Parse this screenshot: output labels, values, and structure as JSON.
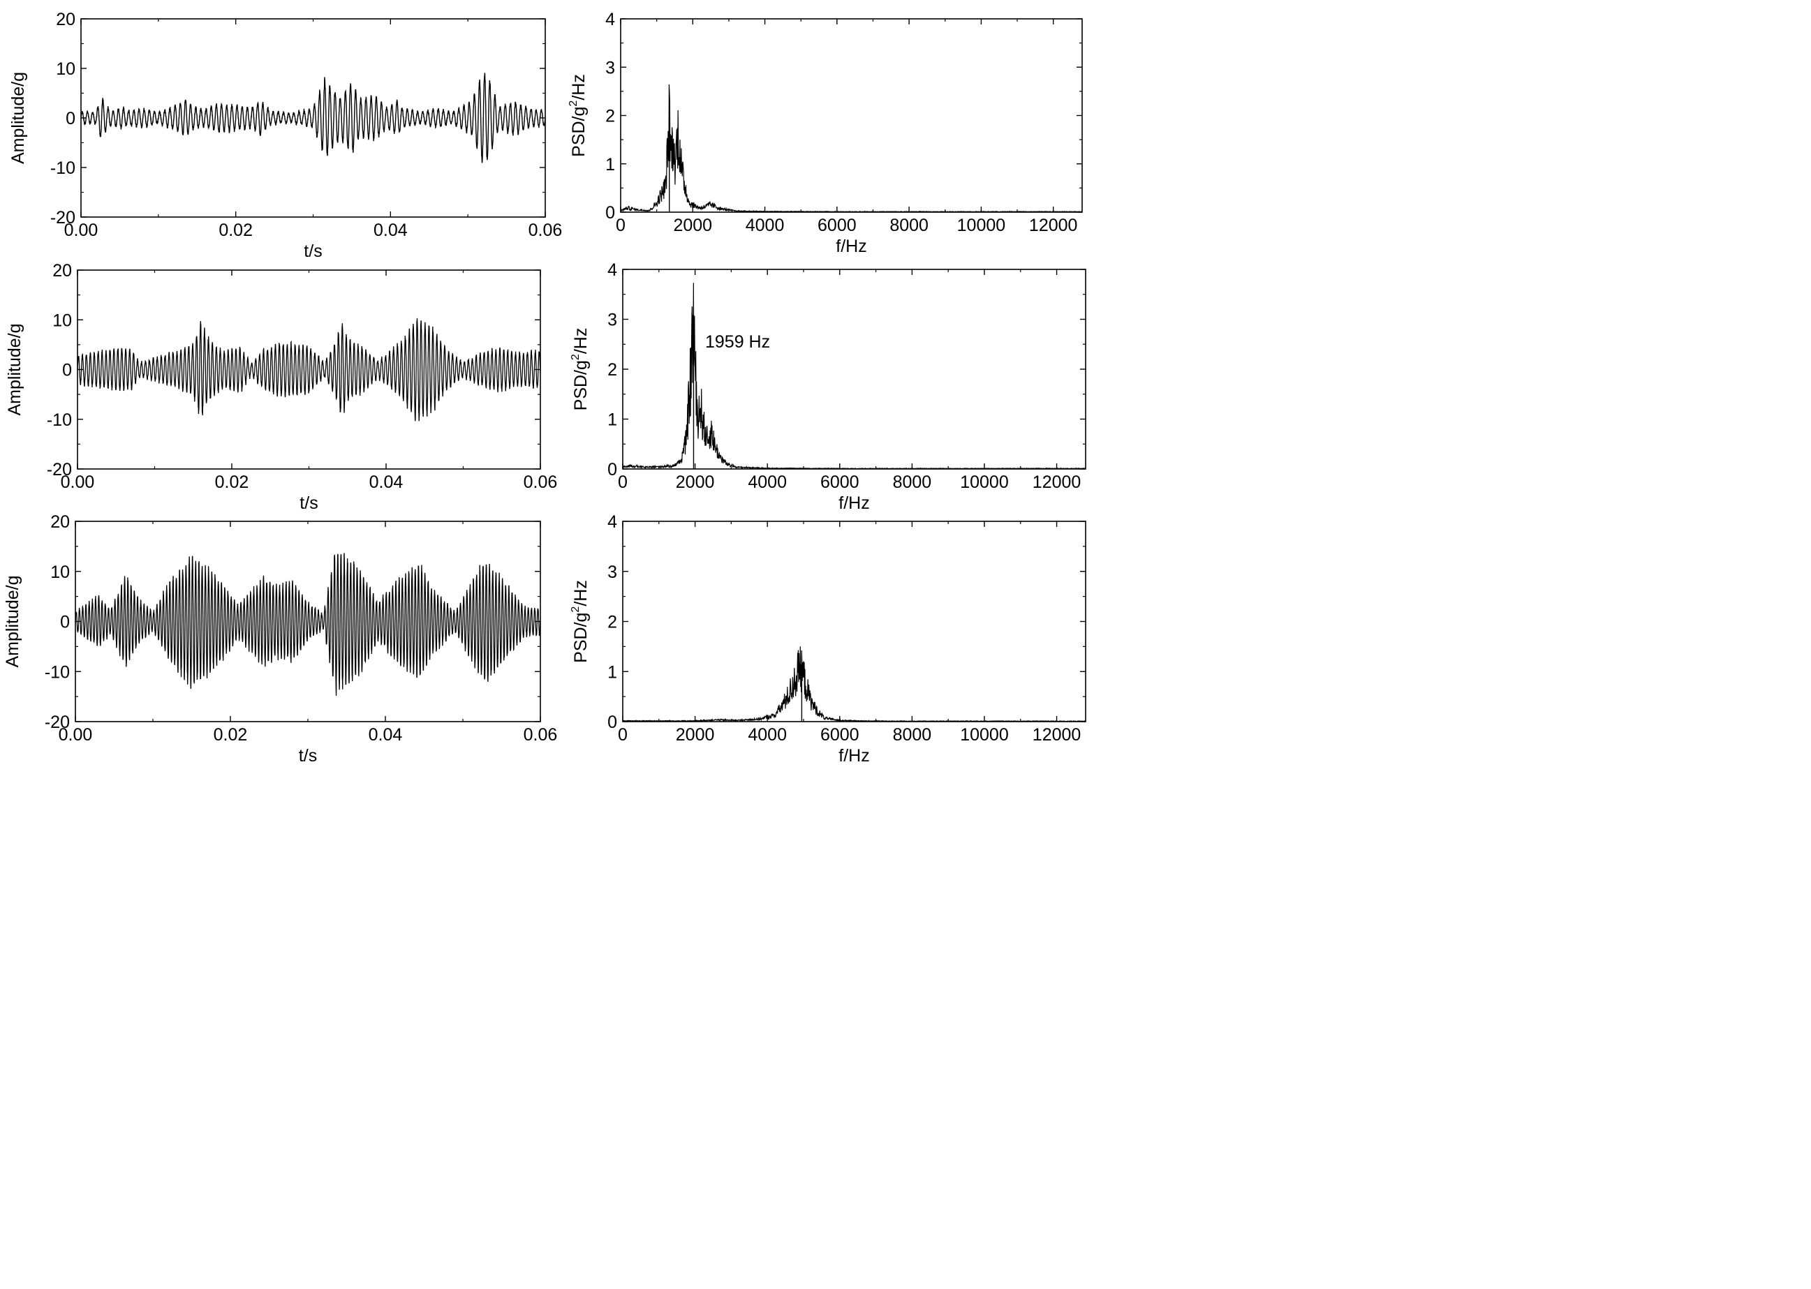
{
  "chart_data": [
    {
      "type": "line",
      "xlabel": "t/s",
      "ylabel": "Amplitude/g",
      "xlim": [
        0,
        0.06
      ],
      "ylim": [
        -20,
        20
      ],
      "xticks": [
        "0.00",
        "0.02",
        "0.04",
        "0.06"
      ],
      "yticks": [
        "-20",
        "-10",
        "0",
        "10",
        "20"
      ],
      "grid": false,
      "series": [
        {
          "values_note_text": "",
          "envelope": [
            [
              0.0,
              1.2
            ],
            [
              0.002,
              1.2
            ],
            [
              0.0026,
              4.8
            ],
            [
              0.0031,
              3.0
            ],
            [
              0.004,
              1.4
            ],
            [
              0.0053,
              2.2
            ],
            [
              0.006,
              1.5
            ],
            [
              0.008,
              2.0
            ],
            [
              0.01,
              1.2
            ],
            [
              0.012,
              2.4
            ],
            [
              0.0136,
              3.9
            ],
            [
              0.0146,
              2.3
            ],
            [
              0.016,
              1.8
            ],
            [
              0.0178,
              3.0
            ],
            [
              0.02,
              2.7
            ],
            [
              0.022,
              2.0
            ],
            [
              0.0232,
              3.6
            ],
            [
              0.0245,
              1.4
            ],
            [
              0.027,
              1.0
            ],
            [
              0.03,
              2.0
            ],
            [
              0.0315,
              8.3
            ],
            [
              0.0325,
              6.5
            ],
            [
              0.0335,
              4.2
            ],
            [
              0.035,
              7.8
            ],
            [
              0.036,
              4.0
            ],
            [
              0.038,
              4.7
            ],
            [
              0.0395,
              2.2
            ],
            [
              0.041,
              3.8
            ],
            [
              0.0415,
              2.0
            ],
            [
              0.044,
              1.2
            ],
            [
              0.046,
              2.0
            ],
            [
              0.048,
              1.2
            ],
            [
              0.0505,
              3.5
            ],
            [
              0.052,
              10.5
            ],
            [
              0.053,
              7.5
            ],
            [
              0.054,
              2.2
            ],
            [
              0.056,
              3.6
            ],
            [
              0.058,
              1.8
            ],
            [
              0.06,
              1.8
            ]
          ],
          "carrier_hz": 1500
        }
      ]
    },
    {
      "type": "line",
      "xlabel": "f/Hz",
      "ylabel": "PSD/g²/Hz",
      "ylabel_main": "PSD/g",
      "ylabel_sup": "2",
      "ylabel_tail": "/Hz",
      "xlim": [
        0,
        12800
      ],
      "ylim": [
        0,
        4
      ],
      "xticks": [
        "0",
        "2000",
        "4000",
        "6000",
        "8000",
        "10000",
        "12000"
      ],
      "yticks": [
        "0",
        "1",
        "2",
        "3",
        "4"
      ],
      "grid": false,
      "peak_hz": 1400,
      "spectrum": [
        [
          0,
          0.03
        ],
        [
          200,
          0.08
        ],
        [
          500,
          0.04
        ],
        [
          800,
          0.03
        ],
        [
          1000,
          0.18
        ],
        [
          1150,
          0.4
        ],
        [
          1250,
          0.55
        ],
        [
          1350,
          1.95
        ],
        [
          1400,
          1.2
        ],
        [
          1450,
          1.45
        ],
        [
          1500,
          0.95
        ],
        [
          1600,
          1.68
        ],
        [
          1700,
          0.8
        ],
        [
          1800,
          0.5
        ],
        [
          1900,
          0.18
        ],
        [
          2200,
          0.08
        ],
        [
          2500,
          0.15
        ],
        [
          2800,
          0.06
        ],
        [
          3200,
          0.02
        ],
        [
          4000,
          0.01
        ],
        [
          6000,
          0.005
        ],
        [
          12800,
          0.005
        ]
      ]
    },
    {
      "type": "line",
      "xlabel": "t/s",
      "ylabel": "Amplitude/g",
      "xlim": [
        0,
        0.06
      ],
      "ylim": [
        -20,
        20
      ],
      "xticks": [
        "0.00",
        "0.02",
        "0.04",
        "0.06"
      ],
      "yticks": [
        "-20",
        "-10",
        "0",
        "10",
        "20"
      ],
      "grid": false,
      "series": [
        {
          "envelope": [
            [
              0.0,
              3.0
            ],
            [
              0.003,
              3.8
            ],
            [
              0.005,
              4.5
            ],
            [
              0.007,
              4.3
            ],
            [
              0.008,
              1.5
            ],
            [
              0.01,
              2.4
            ],
            [
              0.013,
              4.0
            ],
            [
              0.015,
              5.5
            ],
            [
              0.016,
              10.5
            ],
            [
              0.017,
              6.5
            ],
            [
              0.019,
              3.8
            ],
            [
              0.021,
              5.0
            ],
            [
              0.0225,
              1.2
            ],
            [
              0.024,
              4.0
            ],
            [
              0.026,
              5.5
            ],
            [
              0.028,
              5.5
            ],
            [
              0.03,
              5.0
            ],
            [
              0.032,
              1.5
            ],
            [
              0.0335,
              6.0
            ],
            [
              0.0342,
              10.6
            ],
            [
              0.035,
              6.5
            ],
            [
              0.037,
              4.8
            ],
            [
              0.039,
              1.8
            ],
            [
              0.042,
              6.0
            ],
            [
              0.044,
              11.2
            ],
            [
              0.046,
              9.0
            ],
            [
              0.048,
              4.0
            ],
            [
              0.05,
              1.5
            ],
            [
              0.053,
              4.0
            ],
            [
              0.055,
              4.5
            ],
            [
              0.057,
              3.5
            ],
            [
              0.06,
              4.0
            ]
          ],
          "carrier_hz": 1959
        }
      ]
    },
    {
      "type": "line",
      "xlabel": "f/Hz",
      "ylabel": "PSD/g²/Hz",
      "ylabel_main": "PSD/g",
      "ylabel_sup": "2",
      "ylabel_tail": "/Hz",
      "xlim": [
        0,
        12800
      ],
      "ylim": [
        0,
        4
      ],
      "xticks": [
        "0",
        "2000",
        "4000",
        "6000",
        "8000",
        "10000",
        "12000"
      ],
      "yticks": [
        "0",
        "1",
        "2",
        "3",
        "4"
      ],
      "grid": false,
      "annotation": "1959 Hz",
      "peak_hz": 1959,
      "spectrum": [
        [
          0,
          0.03
        ],
        [
          200,
          0.06
        ],
        [
          600,
          0.03
        ],
        [
          1000,
          0.04
        ],
        [
          1400,
          0.06
        ],
        [
          1600,
          0.15
        ],
        [
          1750,
          0.55
        ],
        [
          1850,
          1.5
        ],
        [
          1900,
          2.2
        ],
        [
          1959,
          2.98
        ],
        [
          2000,
          2.1
        ],
        [
          2050,
          1.0
        ],
        [
          2150,
          1.25
        ],
        [
          2250,
          0.8
        ],
        [
          2350,
          0.55
        ],
        [
          2450,
          0.75
        ],
        [
          2550,
          0.45
        ],
        [
          2700,
          0.22
        ],
        [
          2900,
          0.08
        ],
        [
          3200,
          0.03
        ],
        [
          4000,
          0.01
        ],
        [
          6000,
          0.005
        ],
        [
          12800,
          0.005
        ]
      ]
    },
    {
      "type": "line",
      "xlabel": "t/s",
      "ylabel": "Amplitude/g",
      "xlim": [
        0,
        0.06
      ],
      "ylim": [
        -20,
        20
      ],
      "xticks": [
        "0.00",
        "0.02",
        "0.04",
        "0.06"
      ],
      "yticks": [
        "-20",
        "-10",
        "0",
        "10",
        "20"
      ],
      "grid": false,
      "series": [
        {
          "envelope": [
            [
              0.0,
              2.0
            ],
            [
              0.003,
              5.5
            ],
            [
              0.0045,
              2.5
            ],
            [
              0.0065,
              9.8
            ],
            [
              0.0085,
              4.0
            ],
            [
              0.01,
              2.0
            ],
            [
              0.012,
              8.0
            ],
            [
              0.015,
              13.8
            ],
            [
              0.017,
              11.5
            ],
            [
              0.019,
              8.0
            ],
            [
              0.021,
              3.5
            ],
            [
              0.023,
              7.0
            ],
            [
              0.0245,
              9.5
            ],
            [
              0.026,
              7.5
            ],
            [
              0.028,
              8.5
            ],
            [
              0.03,
              4.0
            ],
            [
              0.032,
              1.5
            ],
            [
              0.0335,
              15.0
            ],
            [
              0.035,
              13.5
            ],
            [
              0.037,
              10.5
            ],
            [
              0.039,
              4.0
            ],
            [
              0.042,
              9.5
            ],
            [
              0.0445,
              12.0
            ],
            [
              0.046,
              7.0
            ],
            [
              0.049,
              2.0
            ],
            [
              0.052,
              11.0
            ],
            [
              0.053,
              13.0
            ],
            [
              0.0555,
              8.0
            ],
            [
              0.058,
              3.0
            ],
            [
              0.06,
              3.0
            ]
          ],
          "carrier_hz": 2400
        }
      ]
    },
    {
      "type": "line",
      "xlabel": "f/Hz",
      "ylabel": "PSD/g²/Hz",
      "ylabel_main": "PSD/g",
      "ylabel_sup": "2",
      "ylabel_tail": "/Hz",
      "xlim": [
        0,
        12800
      ],
      "ylim": [
        0,
        4
      ],
      "xticks": [
        "0",
        "2000",
        "4000",
        "6000",
        "8000",
        "10000",
        "12000"
      ],
      "yticks": [
        "0",
        "1",
        "2",
        "3",
        "4"
      ],
      "grid": false,
      "peak_hz": 4900,
      "spectrum": [
        [
          0,
          0.01
        ],
        [
          2000,
          0.01
        ],
        [
          2600,
          0.03
        ],
        [
          3200,
          0.02
        ],
        [
          3800,
          0.05
        ],
        [
          4200,
          0.12
        ],
        [
          4400,
          0.3
        ],
        [
          4600,
          0.55
        ],
        [
          4750,
          0.8
        ],
        [
          4850,
          1.0
        ],
        [
          4950,
          1.05
        ],
        [
          5050,
          0.75
        ],
        [
          5200,
          0.4
        ],
        [
          5400,
          0.18
        ],
        [
          5600,
          0.06
        ],
        [
          6000,
          0.02
        ],
        [
          6600,
          0.01
        ],
        [
          7500,
          0.005
        ],
        [
          12800,
          0.005
        ]
      ]
    }
  ]
}
